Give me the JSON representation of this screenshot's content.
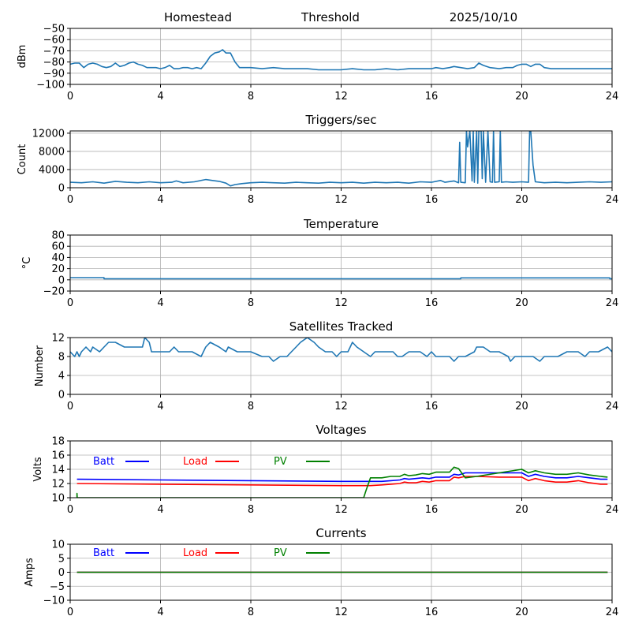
{
  "figure": {
    "header": {
      "location": "Homestead",
      "mode": "Threshold",
      "date": "2025/10/10"
    }
  },
  "chart_data": [
    {
      "id": "signal",
      "type": "line",
      "title": "",
      "xlabel": "",
      "ylabel": "dBm",
      "xlim": [
        0,
        24
      ],
      "ylim": [
        -100,
        -50
      ],
      "xticks": [
        0,
        4,
        8,
        12,
        16,
        20,
        24
      ],
      "yticks": [
        -50,
        -60,
        -70,
        -80,
        -90,
        -100
      ],
      "ytick_labels": [
        "−50",
        "−60",
        "−70",
        "−80",
        "−90",
        "−100"
      ],
      "grid": true,
      "series": [
        {
          "name": "signal",
          "color": "#1f77b4",
          "x": [
            0,
            0.2,
            0.4,
            0.6,
            0.8,
            1.0,
            1.2,
            1.4,
            1.6,
            1.8,
            2.0,
            2.2,
            2.4,
            2.6,
            2.8,
            3.0,
            3.2,
            3.4,
            3.6,
            3.8,
            4.0,
            4.2,
            4.4,
            4.6,
            4.8,
            5.0,
            5.2,
            5.4,
            5.6,
            5.8,
            6.0,
            6.2,
            6.4,
            6.6,
            6.75,
            6.9,
            7.1,
            7.3,
            7.5,
            7.7,
            8.0,
            8.5,
            9.0,
            9.5,
            10.0,
            10.5,
            11.0,
            11.5,
            12.0,
            12.5,
            13.0,
            13.5,
            14.0,
            14.5,
            15.0,
            15.5,
            16.0,
            16.2,
            16.5,
            16.8,
            17.0,
            17.3,
            17.6,
            17.9,
            18.1,
            18.3,
            18.6,
            19.0,
            19.3,
            19.6,
            19.8,
            20.0,
            20.2,
            20.4,
            20.6,
            20.8,
            21.0,
            21.3,
            21.6,
            22.0,
            22.5,
            23.0,
            23.5,
            24.0
          ],
          "y": [
            -82,
            -81,
            -81,
            -85,
            -82,
            -81,
            -82,
            -84,
            -85,
            -84,
            -81,
            -84,
            -83,
            -81,
            -80,
            -82,
            -83,
            -85,
            -85,
            -85,
            -86,
            -85,
            -83,
            -86,
            -86,
            -85,
            -85,
            -86,
            -85,
            -86,
            -81,
            -75,
            -72,
            -71,
            -69,
            -72,
            -72,
            -80,
            -85,
            -85,
            -85,
            -86,
            -85,
            -86,
            -86,
            -86,
            -87,
            -87,
            -87,
            -86,
            -87,
            -87,
            -86,
            -87,
            -86,
            -86,
            -86,
            -85,
            -86,
            -85,
            -84,
            -85,
            -86,
            -85,
            -81,
            -83,
            -85,
            -86,
            -85,
            -85,
            -83,
            -82,
            -82,
            -84,
            -82,
            -82,
            -85,
            -86,
            -86,
            -86,
            -86,
            -86,
            -86,
            -86
          ]
        }
      ]
    },
    {
      "id": "triggers",
      "type": "line",
      "title": "Triggers/sec",
      "xlabel": "",
      "ylabel": "Count",
      "xlim": [
        0,
        24
      ],
      "ylim": [
        0,
        12500
      ],
      "xticks": [
        0,
        4,
        8,
        12,
        16,
        20,
        24
      ],
      "yticks": [
        0,
        4000,
        8000,
        12000
      ],
      "ytick_labels": [
        "0",
        "4000",
        "8000",
        "12000"
      ],
      "grid": true,
      "series": [
        {
          "name": "triggers",
          "color": "#1f77b4",
          "x": [
            0,
            0.5,
            1.0,
            1.5,
            2.0,
            2.5,
            3.0,
            3.5,
            4.0,
            4.5,
            4.7,
            5.0,
            5.5,
            6.0,
            6.3,
            6.6,
            6.9,
            7.1,
            7.3,
            7.6,
            8.0,
            8.5,
            9.0,
            9.5,
            10.0,
            10.5,
            11.0,
            11.5,
            12.0,
            12.5,
            13.0,
            13.5,
            14.0,
            14.5,
            15.0,
            15.5,
            16.0,
            16.4,
            16.6,
            17.0,
            17.2,
            17.25,
            17.3,
            17.5,
            17.55,
            17.6,
            17.7,
            17.8,
            17.85,
            17.9,
            18.0,
            18.05,
            18.1,
            18.2,
            18.25,
            18.3,
            18.4,
            18.5,
            18.6,
            18.7,
            18.75,
            18.8,
            19.0,
            19.05,
            19.1,
            19.3,
            19.6,
            20.0,
            20.3,
            20.35,
            20.4,
            20.5,
            20.6,
            21.0,
            21.5,
            22.0,
            22.5,
            23.0,
            23.5,
            24.0
          ],
          "y": [
            1200,
            1100,
            1300,
            1000,
            1400,
            1200,
            1100,
            1300,
            1100,
            1200,
            1500,
            1100,
            1300,
            1800,
            1600,
            1400,
            1000,
            400,
            700,
            900,
            1100,
            1200,
            1100,
            1000,
            1200,
            1100,
            1000,
            1200,
            1100,
            1200,
            1000,
            1200,
            1100,
            1200,
            1000,
            1300,
            1200,
            1600,
            1200,
            1500,
            1100,
            10000,
            1200,
            1100,
            12500,
            9000,
            12500,
            1500,
            12500,
            1200,
            12500,
            1000,
            12500,
            12500,
            2000,
            12500,
            1200,
            12500,
            1300,
            1200,
            12500,
            1200,
            1300,
            12500,
            1200,
            1300,
            1200,
            1300,
            1200,
            12500,
            12500,
            5000,
            1300,
            1100,
            1200,
            1100,
            1200,
            1300,
            1200,
            1300
          ]
        }
      ]
    },
    {
      "id": "temperature",
      "type": "line",
      "title": "Temperature",
      "xlabel": "",
      "ylabel": "°C",
      "xlim": [
        0,
        24
      ],
      "ylim": [
        -20,
        80
      ],
      "xticks": [
        0,
        4,
        8,
        12,
        16,
        20,
        24
      ],
      "yticks": [
        -20,
        0,
        20,
        40,
        60,
        80
      ],
      "ytick_labels": [
        "−20",
        "0",
        "20",
        "40",
        "60",
        "80"
      ],
      "grid": true,
      "series": [
        {
          "name": "temperature",
          "color": "#1f77b4",
          "x": [
            0,
            1.5,
            1.5,
            17.3,
            17.3,
            23.9,
            23.9,
            24
          ],
          "y": [
            4,
            4,
            2,
            2,
            3.5,
            3.5,
            2,
            2
          ]
        }
      ]
    },
    {
      "id": "satellites",
      "type": "line",
      "title": "Satellites Tracked",
      "xlabel": "",
      "ylabel": "Number",
      "xlim": [
        0,
        24
      ],
      "ylim": [
        0,
        12
      ],
      "xticks": [
        0,
        4,
        8,
        12,
        16,
        20,
        24
      ],
      "yticks": [
        0,
        4,
        8,
        12
      ],
      "ytick_labels": [
        "0",
        "4",
        "8",
        "12"
      ],
      "grid": true,
      "series": [
        {
          "name": "satellites",
          "color": "#1f77b4",
          "x": [
            0,
            0.2,
            0.3,
            0.4,
            0.5,
            0.7,
            0.9,
            1.0,
            1.3,
            1.5,
            1.7,
            2.0,
            2.4,
            2.8,
            3.2,
            3.3,
            3.5,
            3.6,
            4.0,
            4.4,
            4.6,
            4.8,
            5.0,
            5.4,
            5.8,
            5.9,
            6.0,
            6.2,
            6.6,
            6.9,
            7.0,
            7.4,
            7.6,
            8.0,
            8.5,
            8.8,
            9.0,
            9.3,
            9.6,
            9.8,
            10.0,
            10.2,
            10.5,
            10.8,
            11.0,
            11.3,
            11.6,
            11.8,
            12.0,
            12.3,
            12.4,
            12.5,
            12.7,
            13.0,
            13.3,
            13.5,
            14.0,
            14.3,
            14.5,
            14.7,
            15.0,
            15.5,
            15.8,
            16.0,
            16.2,
            16.5,
            16.8,
            17.0,
            17.2,
            17.5,
            17.9,
            18.0,
            18.3,
            18.6,
            19.0,
            19.4,
            19.5,
            19.7,
            20.0,
            20.5,
            20.8,
            21.0,
            21.4,
            21.6,
            22.0,
            22.5,
            22.8,
            23.0,
            23.4,
            23.8,
            24.0
          ],
          "y": [
            9,
            8,
            9,
            8,
            9,
            10,
            9,
            10,
            9,
            10,
            11,
            11,
            10,
            10,
            10,
            12,
            11,
            9,
            9,
            9,
            10,
            9,
            9,
            9,
            8,
            9,
            10,
            11,
            10,
            9,
            10,
            9,
            9,
            9,
            8,
            8,
            7,
            8,
            8,
            9,
            10,
            11,
            12,
            11,
            10,
            9,
            9,
            8,
            9,
            9,
            10,
            11,
            10,
            9,
            8,
            9,
            9,
            9,
            8,
            8,
            9,
            9,
            8,
            9,
            8,
            8,
            8,
            7,
            8,
            8,
            9,
            10,
            10,
            9,
            9,
            8,
            7,
            8,
            8,
            8,
            7,
            8,
            8,
            8,
            9,
            9,
            8,
            9,
            9,
            10,
            9
          ]
        }
      ]
    },
    {
      "id": "voltages",
      "type": "line",
      "title": "Voltages",
      "xlabel": "",
      "ylabel": "Volts",
      "xlim": [
        0,
        24
      ],
      "ylim": [
        10,
        18
      ],
      "xticks": [
        0,
        4,
        8,
        12,
        16,
        20,
        24
      ],
      "yticks": [
        10,
        12,
        14,
        16,
        18
      ],
      "ytick_labels": [
        "10",
        "12",
        "14",
        "16",
        "18"
      ],
      "grid": true,
      "legend": {
        "placement": "top-left inline"
      },
      "series": [
        {
          "name": "Batt",
          "color": "#0000ff",
          "x": [
            0.3,
            4,
            8,
            12,
            13.3,
            13.8,
            14.2,
            14.6,
            14.8,
            15.0,
            15.3,
            15.6,
            15.9,
            16.2,
            16.5,
            16.8,
            17.0,
            17.2,
            17.5,
            18,
            19,
            20,
            20.3,
            20.6,
            21.0,
            21.5,
            22.0,
            22.5,
            23.0,
            23.5,
            23.8
          ],
          "y": [
            12.6,
            12.5,
            12.4,
            12.3,
            12.3,
            12.3,
            12.4,
            12.5,
            12.7,
            12.6,
            12.7,
            12.8,
            12.7,
            12.9,
            12.9,
            12.9,
            13.3,
            13.2,
            13.5,
            13.5,
            13.5,
            13.5,
            13.0,
            13.3,
            13.0,
            12.8,
            12.8,
            13.0,
            12.8,
            12.6,
            12.6
          ]
        },
        {
          "name": "Load",
          "color": "#ff0000",
          "x": [
            0.3,
            4,
            8,
            12,
            13.3,
            13.8,
            14.2,
            14.6,
            14.8,
            15.0,
            15.3,
            15.6,
            15.9,
            16.2,
            16.5,
            16.8,
            17.0,
            17.2,
            17.5,
            18,
            19,
            20,
            20.3,
            20.6,
            21.0,
            21.5,
            22.0,
            22.5,
            23.0,
            23.5,
            23.8
          ],
          "y": [
            12.0,
            11.9,
            11.8,
            11.7,
            11.7,
            11.8,
            11.9,
            12.0,
            12.2,
            12.1,
            12.1,
            12.3,
            12.2,
            12.4,
            12.4,
            12.4,
            12.9,
            12.8,
            13.0,
            13.0,
            12.9,
            12.9,
            12.4,
            12.7,
            12.4,
            12.2,
            12.2,
            12.4,
            12.1,
            11.9,
            11.9
          ]
        },
        {
          "name": "PV",
          "color": "#008000",
          "x": [
            0.3,
            0.3,
            0.31,
            13.0,
            13.1,
            13.3,
            13.8,
            14.2,
            14.6,
            14.8,
            15.0,
            15.3,
            15.6,
            15.9,
            16.2,
            16.5,
            16.8,
            17.0,
            17.2,
            17.5,
            18,
            19,
            20,
            20.3,
            20.6,
            21.0,
            21.5,
            22.0,
            22.5,
            23.0,
            23.5,
            23.8
          ],
          "y": [
            10.0,
            10.6,
            10.0,
            10.0,
            11.0,
            12.8,
            12.8,
            13.0,
            13.0,
            13.3,
            13.1,
            13.2,
            13.4,
            13.3,
            13.6,
            13.6,
            13.6,
            14.3,
            14.1,
            12.8,
            13.0,
            13.5,
            14.0,
            13.5,
            13.8,
            13.5,
            13.3,
            13.3,
            13.5,
            13.2,
            13.0,
            12.9
          ]
        }
      ]
    },
    {
      "id": "currents",
      "type": "line",
      "title": "Currents",
      "xlabel": "",
      "ylabel": "Amps",
      "xlim": [
        0,
        24
      ],
      "ylim": [
        -10,
        10
      ],
      "xticks": [
        0,
        4,
        8,
        12,
        16,
        20,
        24
      ],
      "yticks": [
        -10,
        -5,
        0,
        5,
        10
      ],
      "ytick_labels": [
        "−10",
        "−5",
        "0",
        "5",
        "10"
      ],
      "grid": true,
      "legend": {
        "placement": "top-left inline"
      },
      "series": [
        {
          "name": "Batt",
          "color": "#0000ff",
          "x": [
            0.3,
            23.8
          ],
          "y": [
            0,
            0
          ]
        },
        {
          "name": "Load",
          "color": "#ff0000",
          "x": [
            0.3,
            23.8
          ],
          "y": [
            0,
            0
          ]
        },
        {
          "name": "PV",
          "color": "#008000",
          "x": [
            0.3,
            23.8
          ],
          "y": [
            0,
            0
          ]
        }
      ]
    }
  ]
}
